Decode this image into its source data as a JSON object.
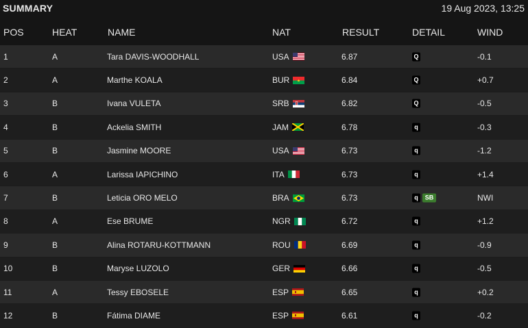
{
  "header": {
    "title": "SUMMARY",
    "datetime": "19 Aug 2023, 13:25"
  },
  "columns": {
    "pos": "POS",
    "heat": "HEAT",
    "name": "NAME",
    "nat": "NAT",
    "result": "RESULT",
    "detail": "DETAIL",
    "wind": "WIND"
  },
  "rows": [
    {
      "pos": "1",
      "heat": "A",
      "name": "Tara DAVIS-WOODHALL",
      "nat": "USA",
      "flag": "usa",
      "result": "6.87",
      "detail": [
        "Q"
      ],
      "wind": "-0.1"
    },
    {
      "pos": "2",
      "heat": "A",
      "name": "Marthe KOALA",
      "nat": "BUR",
      "flag": "bur",
      "result": "6.84",
      "detail": [
        "Q"
      ],
      "wind": "+0.7"
    },
    {
      "pos": "3",
      "heat": "B",
      "name": "Ivana VULETA",
      "nat": "SRB",
      "flag": "srb",
      "result": "6.82",
      "detail": [
        "Q"
      ],
      "wind": "-0.5"
    },
    {
      "pos": "4",
      "heat": "B",
      "name": "Ackelia SMITH",
      "nat": "JAM",
      "flag": "jam",
      "result": "6.78",
      "detail": [
        "q"
      ],
      "wind": "-0.3"
    },
    {
      "pos": "5",
      "heat": "B",
      "name": "Jasmine MOORE",
      "nat": "USA",
      "flag": "usa",
      "result": "6.73",
      "detail": [
        "q"
      ],
      "wind": "-1.2"
    },
    {
      "pos": "6",
      "heat": "A",
      "name": "Larissa IAPICHINO",
      "nat": "ITA",
      "flag": "ita",
      "result": "6.73",
      "detail": [
        "q"
      ],
      "wind": "+1.4"
    },
    {
      "pos": "7",
      "heat": "B",
      "name": "Leticia ORO MELO",
      "nat": "BRA",
      "flag": "bra",
      "result": "6.73",
      "detail": [
        "q",
        "SB"
      ],
      "wind": "NWI"
    },
    {
      "pos": "8",
      "heat": "A",
      "name": "Ese BRUME",
      "nat": "NGR",
      "flag": "ngr",
      "result": "6.72",
      "detail": [
        "q"
      ],
      "wind": "+1.2"
    },
    {
      "pos": "9",
      "heat": "B",
      "name": "Alina ROTARU-KOTTMANN",
      "nat": "ROU",
      "flag": "rou",
      "result": "6.69",
      "detail": [
        "q"
      ],
      "wind": "-0.9"
    },
    {
      "pos": "10",
      "heat": "B",
      "name": "Maryse LUZOLO",
      "nat": "GER",
      "flag": "ger",
      "result": "6.66",
      "detail": [
        "q"
      ],
      "wind": "-0.5"
    },
    {
      "pos": "11",
      "heat": "A",
      "name": "Tessy EBOSELE",
      "nat": "ESP",
      "flag": "esp",
      "result": "6.65",
      "detail": [
        "q"
      ],
      "wind": "+0.2"
    },
    {
      "pos": "12",
      "heat": "B",
      "name": "Fátima DIAME",
      "nat": "ESP",
      "flag": "esp",
      "result": "6.61",
      "detail": [
        "q"
      ],
      "wind": "-0.2"
    }
  ]
}
